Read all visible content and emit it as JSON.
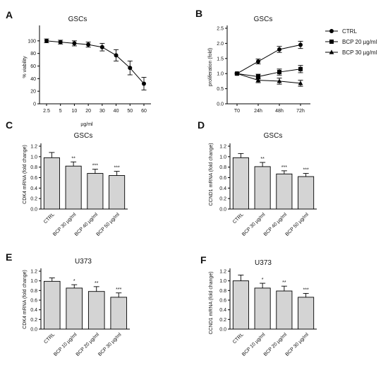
{
  "chart_data": [
    {
      "panel": "A",
      "type": "line",
      "title": "GSCs",
      "xlabel": "µg/ml",
      "ylabel": "% viability",
      "x": [
        "2.5",
        "5",
        "10",
        "20",
        "30",
        "40",
        "50",
        "60"
      ],
      "ylim": [
        0,
        120
      ],
      "yticks": [
        0,
        20,
        40,
        60,
        80,
        100
      ],
      "series": [
        {
          "values": [
            100,
            98,
            96,
            94,
            90,
            77,
            57,
            32
          ],
          "errors": [
            3,
            3,
            4,
            4,
            6,
            9,
            11,
            10
          ]
        }
      ]
    },
    {
      "panel": "B",
      "type": "line",
      "title": "GSCs",
      "ylabel": "proliferation (fold)",
      "x": [
        "T0",
        "24h",
        "48h",
        "72h"
      ],
      "ylim": [
        0,
        2.5
      ],
      "yticks": [
        0.0,
        0.5,
        1.0,
        1.5,
        2.0,
        2.5
      ],
      "series": [
        {
          "name": "CTRL",
          "marker": "circle",
          "values": [
            1.0,
            1.4,
            1.8,
            1.95
          ],
          "errors": [
            0.02,
            0.08,
            0.1,
            0.12
          ]
        },
        {
          "name": "BCP 20 µg/ml",
          "marker": "square",
          "values": [
            1.0,
            0.9,
            1.05,
            1.15
          ],
          "errors": [
            0.02,
            0.08,
            0.1,
            0.12
          ]
        },
        {
          "name": "BCP 30 µg/ml",
          "marker": "triangle",
          "values": [
            1.0,
            0.78,
            0.75,
            0.68
          ],
          "errors": [
            0.02,
            0.08,
            0.1,
            0.1
          ]
        }
      ],
      "legend_position": "right"
    },
    {
      "panel": "C",
      "type": "bar",
      "title": "GSCs",
      "ylabel": "CDK4 mRNA (fold change)",
      "categories": [
        "CTRL",
        "BCP 30 µg/ml",
        "BCP 40 µg/ml",
        "BCP 50 µg/ml"
      ],
      "values": [
        0.98,
        0.82,
        0.68,
        0.64
      ],
      "errors": [
        0.1,
        0.08,
        0.08,
        0.08
      ],
      "significance": [
        "",
        "**",
        "***",
        "***"
      ],
      "ylim": [
        0,
        1.2
      ],
      "yticks": [
        0.0,
        0.2,
        0.4,
        0.6,
        0.8,
        1.0,
        1.2
      ]
    },
    {
      "panel": "D",
      "type": "bar",
      "title": "GSCs",
      "ylabel": "CCND1 mRNA (fold change)",
      "categories": [
        "CTRL",
        "BCP 30 µg/ml",
        "BCP 40 µg/ml",
        "BCP 50 µg/ml"
      ],
      "values": [
        0.98,
        0.81,
        0.67,
        0.62
      ],
      "errors": [
        0.08,
        0.08,
        0.06,
        0.06
      ],
      "significance": [
        "",
        "**",
        "***",
        "***"
      ],
      "ylim": [
        0,
        1.2
      ],
      "yticks": [
        0.0,
        0.2,
        0.4,
        0.6,
        0.8,
        1.0,
        1.2
      ]
    },
    {
      "panel": "E",
      "type": "bar",
      "title": "U373",
      "ylabel": "CDK4 mRNA (fold change)",
      "categories": [
        "CTRL",
        "BCP 10 µg/ml",
        "BCP 20 µg/ml",
        "BCP 30 µg/ml"
      ],
      "values": [
        0.99,
        0.85,
        0.78,
        0.66
      ],
      "errors": [
        0.07,
        0.07,
        0.1,
        0.09
      ],
      "significance": [
        "",
        "*",
        "**",
        "***"
      ],
      "ylim": [
        0,
        1.2
      ],
      "yticks": [
        0.0,
        0.2,
        0.4,
        0.6,
        0.8,
        1.0,
        1.2
      ]
    },
    {
      "panel": "F",
      "type": "bar",
      "title": "U373",
      "ylabel": "CCND1 mRNA (fold change)",
      "categories": [
        "CTRL",
        "BCP 10 µg/ml",
        "BCP 20 µg/ml",
        "BCP 30 µg/ml"
      ],
      "values": [
        1.0,
        0.85,
        0.79,
        0.66
      ],
      "errors": [
        0.12,
        0.1,
        0.1,
        0.08
      ],
      "significance": [
        "",
        "*",
        "**",
        "***"
      ],
      "ylim": [
        0,
        1.2
      ],
      "yticks": [
        0.0,
        0.2,
        0.4,
        0.6,
        0.8,
        1.0,
        1.2
      ]
    }
  ]
}
